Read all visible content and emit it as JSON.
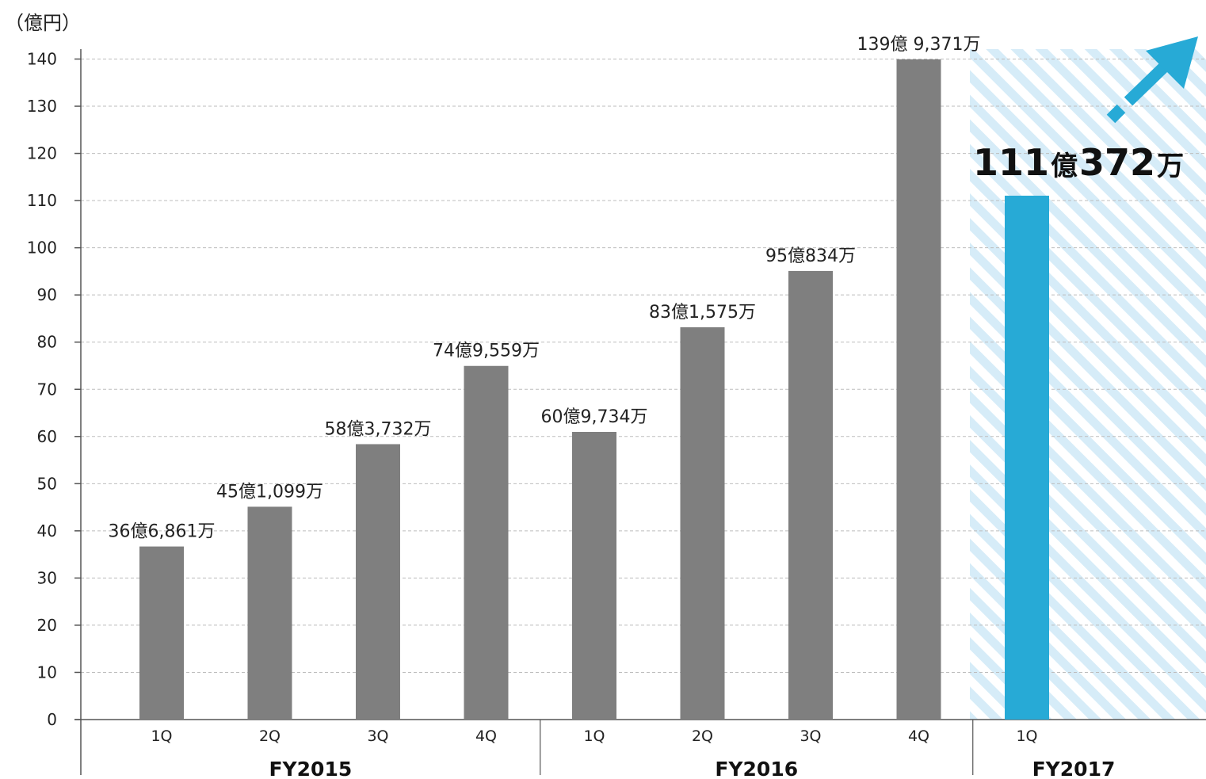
{
  "chart_data": {
    "type": "bar",
    "unit_label": "（億円）",
    "ylim": [
      0,
      140
    ],
    "yticks": [
      0,
      10,
      20,
      30,
      40,
      50,
      60,
      70,
      80,
      90,
      100,
      110,
      120,
      130,
      140
    ],
    "grid": true,
    "categories": [
      "1Q",
      "2Q",
      "3Q",
      "4Q",
      "1Q",
      "2Q",
      "3Q",
      "4Q",
      "1Q"
    ],
    "groups": [
      {
        "label": "FY2015",
        "count": 4
      },
      {
        "label": "FY2016",
        "count": 4
      },
      {
        "label": "FY2017",
        "count": 1
      }
    ],
    "values": [
      36.6861,
      45.1099,
      58.3732,
      74.9559,
      60.9734,
      83.1575,
      95.0834,
      139.9371,
      111.0372
    ],
    "data_labels": [
      "36億6,861万",
      "45億1,099万",
      "58億3,732万",
      "74億9,559万",
      "60億9,734万",
      "83億1,575万",
      "95億834万",
      "139億 9,371万",
      "111億372万"
    ],
    "highlight": {
      "index": 8,
      "num1": "111",
      "unit1": "億",
      "num2": "372",
      "unit2": "万"
    },
    "colors": {
      "bar": "#7f7f7f",
      "highlight_bar": "#27aad6",
      "arrow": "#27aad6",
      "hatch": "#d6ecf8",
      "grid": "#bdbdbd",
      "axis": "#555555"
    }
  }
}
